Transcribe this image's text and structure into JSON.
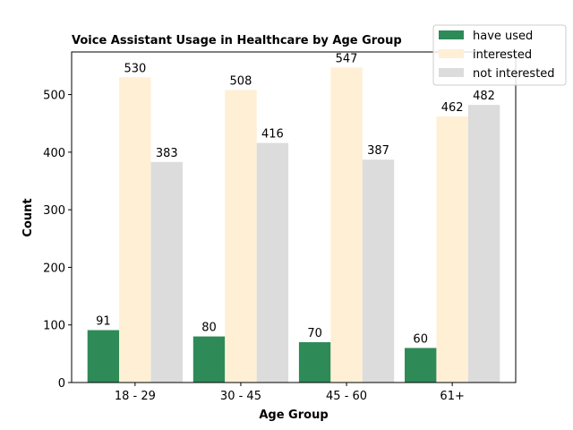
{
  "chart_data": {
    "type": "bar",
    "title": "Voice Assistant Usage in Healthcare by Age Group",
    "xlabel": "Age Group",
    "ylabel": "Count",
    "categories": [
      "18 - 29",
      "30 - 45",
      "45 - 60",
      "61+"
    ],
    "series": [
      {
        "name": "have used",
        "values": [
          91,
          80,
          70,
          60
        ],
        "color": "#2e8b57"
      },
      {
        "name": "interested",
        "values": [
          530,
          508,
          547,
          462
        ],
        "color": "#ffefd5"
      },
      {
        "name": "not interested",
        "values": [
          383,
          416,
          387,
          482
        ],
        "color": "#dcdcdc"
      }
    ],
    "ylim": [
      0,
      574
    ],
    "yticks": [
      0,
      100,
      200,
      300,
      400,
      500
    ],
    "grid": false,
    "legend_position": "top-right"
  }
}
